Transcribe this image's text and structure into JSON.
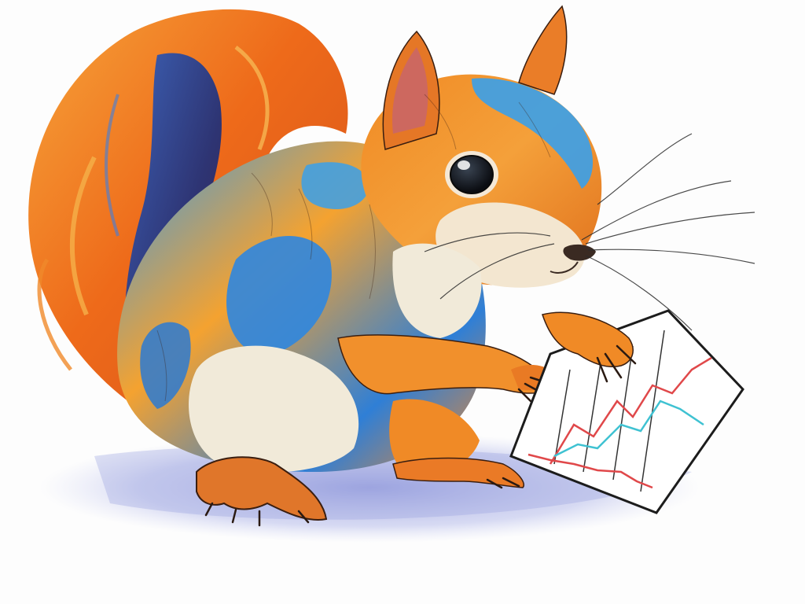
{
  "scene": {
    "subject": "squirrel",
    "held_object": "line-chart-card",
    "palette": {
      "background": "#fdfdfd",
      "shadow": "#8a93d8",
      "tail_orange": "#f07a1e",
      "tail_dark": "#2a3a8c",
      "body_blue": "#2f8ee0",
      "body_orange": "#f39a2a",
      "belly_cream": "#f1ead9",
      "outline": "#2a1a12",
      "chart_red": "#e0484a",
      "chart_cyan": "#3fc2d2",
      "chart_frame": "#1c1c1c"
    }
  }
}
